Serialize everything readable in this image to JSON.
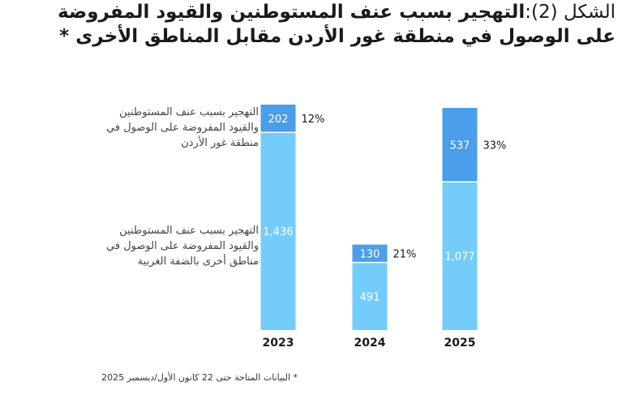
{
  "title": {
    "prefix": "الشكل (2):",
    "line1": "التهجير بسبب عنف المستوطنين والقيود المفروضة",
    "line2": "على الوصول في منطقة غور الأردن مقابل المناطق الأخرى *"
  },
  "footnote": "* البيانات المتاحة حتى 22 كانون الأول/ديسمبر 2025",
  "colors": {
    "jordan_valley": "#4a9eea",
    "other_areas": "#74ccfa",
    "bar_text": "#ffffff"
  },
  "chart_data": {
    "type": "bar",
    "stacked": true,
    "categories": [
      "2023",
      "2024",
      "2025"
    ],
    "series": [
      {
        "name": "التهجير بسبب عنف المستوطنين والقيود المفروضة على الوصول في مناطق أخرى بالضفة الغربية",
        "values": [
          1436,
          491,
          1077
        ]
      },
      {
        "name": "التهجير بسبب عنف المستوطنين والقيود المفروضة على الوصول في منطقة غور الأردن",
        "values": [
          202,
          130,
          537
        ]
      }
    ],
    "value_labels": {
      "other_areas": [
        "1,436",
        "491",
        "1,077"
      ],
      "jordan_valley": [
        "202",
        "130",
        "537"
      ]
    },
    "percent_labels": [
      "12%",
      "21%",
      "33%"
    ],
    "legend": {
      "jordan_valley": [
        "التهجير بسبب عنف المستوطنين",
        "والقيود المفروضة على الوصول في",
        "منطقة غور الأردن"
      ],
      "other_areas": [
        "التهجير بسبب عنف المستوطنين",
        "والقيود المفروضة على الوصول في",
        "مناطق أخرى بالضفة الغربية"
      ]
    },
    "title": "",
    "xlabel": "",
    "ylabel": "",
    "ylim": [
      0,
      1638
    ],
    "grid": false
  }
}
